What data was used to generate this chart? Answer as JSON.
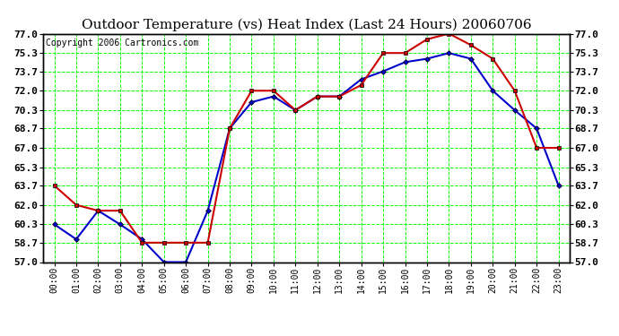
{
  "title": "Outdoor Temperature (vs) Heat Index (Last 24 Hours) 20060706",
  "copyright": "Copyright 2006 Cartronics.com",
  "hours": [
    "00:00",
    "01:00",
    "02:00",
    "03:00",
    "04:00",
    "05:00",
    "06:00",
    "07:00",
    "08:00",
    "09:00",
    "10:00",
    "11:00",
    "12:00",
    "13:00",
    "14:00",
    "15:00",
    "16:00",
    "17:00",
    "18:00",
    "19:00",
    "20:00",
    "21:00",
    "22:00",
    "23:00"
  ],
  "temp": [
    60.3,
    59.0,
    61.5,
    60.3,
    59.0,
    57.0,
    57.0,
    61.5,
    68.7,
    71.0,
    71.5,
    70.3,
    71.5,
    71.5,
    73.0,
    73.7,
    74.5,
    74.8,
    75.3,
    74.8,
    72.0,
    70.3,
    68.7,
    63.7
  ],
  "heat_index": [
    63.7,
    62.0,
    61.5,
    61.5,
    58.7,
    58.7,
    58.7,
    58.7,
    68.7,
    72.0,
    72.0,
    70.3,
    71.5,
    71.5,
    72.5,
    75.3,
    75.3,
    76.5,
    77.0,
    76.0,
    74.8,
    72.0,
    67.0,
    67.0
  ],
  "temp_color": "#0000CC",
  "heat_index_color": "#CC0000",
  "background_color": "#FFFFFF",
  "plot_bg_color": "#FFFFFF",
  "grid_color": "#00FF00",
  "title_fontsize": 11,
  "copyright_fontsize": 7,
  "tick_fontsize": 8,
  "ylim": [
    57.0,
    77.0
  ],
  "yticks": [
    57.0,
    58.7,
    60.3,
    62.0,
    63.7,
    65.3,
    67.0,
    68.7,
    70.3,
    72.0,
    73.7,
    75.3,
    77.0
  ]
}
